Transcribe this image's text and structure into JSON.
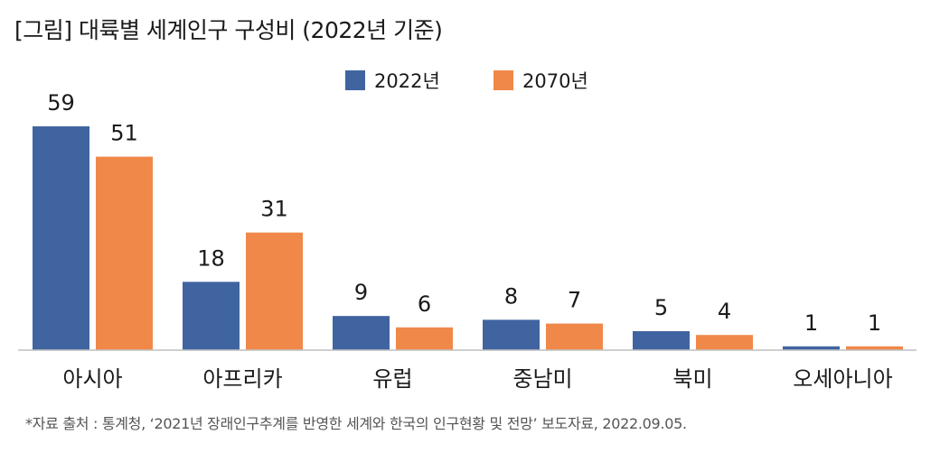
{
  "title": "[그림] 대륙별 세계인구 구성비 (2022년 기준)",
  "source": "*자료 출처 : 통계청, ‘2021년 장래인구추계를 반영한 세계와 한국의 인구현황 및 전망’ 보도자료, 2022.09.05.",
  "colors": {
    "series_2022": "#4064A0",
    "series_2070": "#F0884A",
    "axis": "#BFBFBF"
  },
  "chart_data": {
    "type": "bar",
    "categories": [
      "아시아",
      "아프리카",
      "유럽",
      "중남미",
      "북미",
      "오세아니아"
    ],
    "series": [
      {
        "name": "2022년",
        "values": [
          59,
          18,
          9,
          8,
          5,
          1
        ]
      },
      {
        "name": "2070년",
        "values": [
          51,
          31,
          6,
          7,
          4,
          1
        ]
      }
    ],
    "ylim": [
      0,
      60
    ],
    "grid": false,
    "legend": "top-center"
  }
}
